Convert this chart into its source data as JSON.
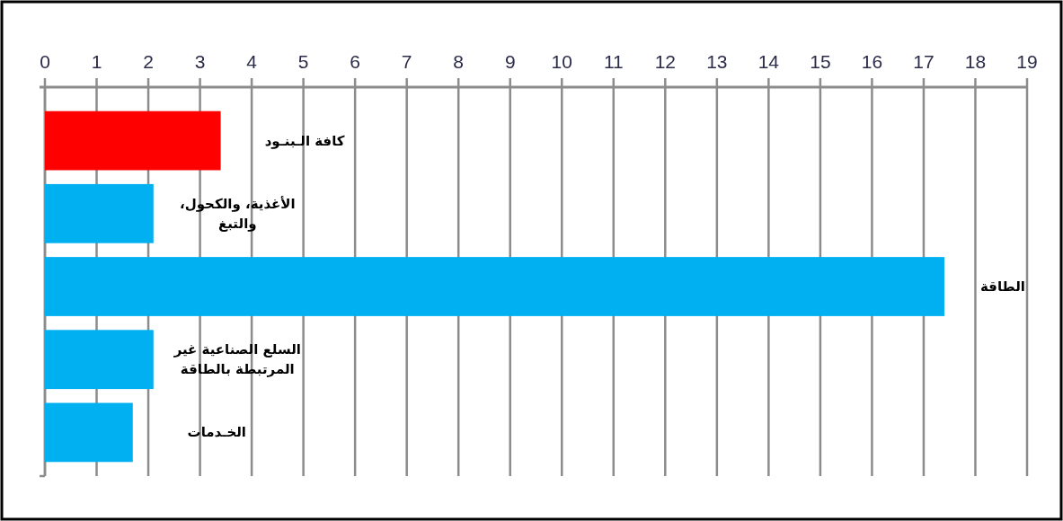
{
  "chart_data": {
    "type": "bar",
    "orientation": "horizontal",
    "categories": [
      "كافة الـبنـود",
      "الأغذية، والكحول، والتبغ",
      "الطاقة",
      "السلع الصناعية غير المرتبطة بالطاقة",
      "الخـدمات"
    ],
    "values": [
      3.4,
      2.1,
      17.4,
      2.1,
      1.7
    ],
    "colors": [
      "#ff0000",
      "#00b0f0",
      "#00b0f0",
      "#00b0f0",
      "#00b0f0"
    ],
    "xlim": [
      0,
      19
    ],
    "xticks": [
      0,
      1,
      2,
      3,
      4,
      5,
      6,
      7,
      8,
      9,
      10,
      11,
      12,
      13,
      14,
      15,
      16,
      17,
      18,
      19
    ],
    "grid": "x"
  }
}
